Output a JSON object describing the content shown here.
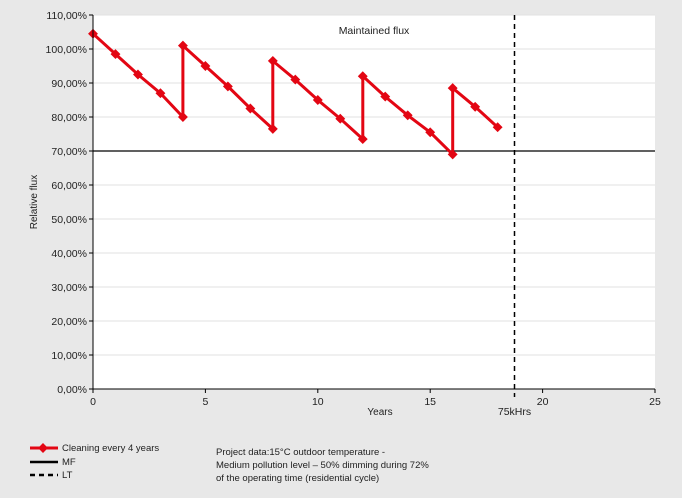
{
  "colors": {
    "background": "#e8e8e8",
    "plot_background": "#ffffff",
    "grid": "#e2e2e2",
    "series": "#e30613",
    "reference": "#000000"
  },
  "chart_data": {
    "type": "line",
    "title": "Maintained flux",
    "xlabel": "Years",
    "ylabel": "Relative flux",
    "xlim": [
      0,
      25
    ],
    "ylim": [
      0,
      110
    ],
    "x_ticks": [
      0,
      5,
      10,
      15,
      20,
      25
    ],
    "y_ticks": [
      "0,00%",
      "10,00%",
      "20,00%",
      "30,00%",
      "40,00%",
      "50,00%",
      "60,00%",
      "70,00%",
      "80,00%",
      "90,00%",
      "100,00%",
      "110,00%"
    ],
    "y_tick_values": [
      0,
      10,
      20,
      30,
      40,
      50,
      60,
      70,
      80,
      90,
      100,
      110
    ],
    "grid": true,
    "series": [
      {
        "name": "Cleaning every 4 years",
        "color": "#e30613",
        "x": [
          0,
          1,
          2,
          3,
          4,
          4,
          5,
          6,
          7,
          8,
          8,
          9,
          10,
          11,
          12,
          12,
          13,
          14,
          15,
          16,
          16,
          17,
          18
        ],
        "y": [
          104.5,
          98.5,
          92.5,
          87,
          80,
          101,
          95,
          89,
          82.5,
          76.5,
          96.5,
          91,
          85,
          79.5,
          73.5,
          92,
          86,
          80.5,
          75.5,
          69,
          88.5,
          83,
          77
        ]
      }
    ],
    "reference_lines": [
      {
        "name": "MF",
        "orientation": "horizontal",
        "value": 70,
        "style": "solid"
      },
      {
        "name": "LT",
        "orientation": "vertical",
        "value": 18.75,
        "style": "dashed",
        "label": "75kHrs"
      }
    ],
    "legend": {
      "placement": "bottom-left",
      "entries": [
        "Cleaning every 4 years",
        "MF",
        "LT"
      ]
    },
    "annotation": {
      "lines": [
        "Project data:15°C outdoor temperature -",
        "Medium pollution level – 50% dimming during 72%",
        "of the operating time (residential cycle)"
      ]
    }
  }
}
